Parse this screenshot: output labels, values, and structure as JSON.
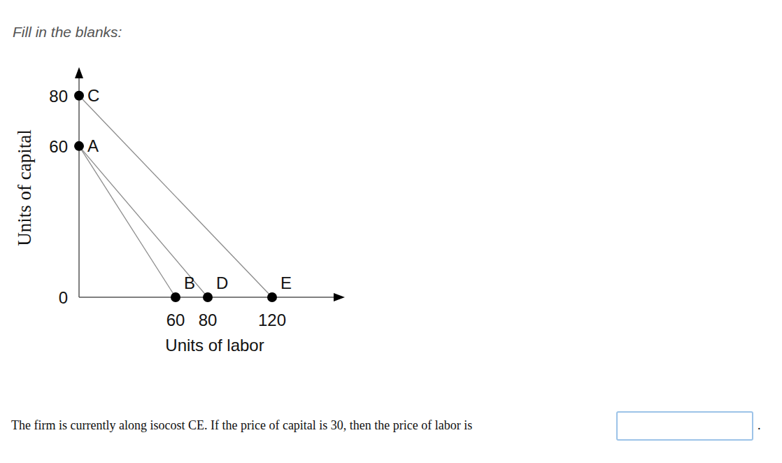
{
  "page": {
    "instruction": "Fill in the blanks:",
    "question": "The firm is currently along isocost CE. If the price of capital is 30, then the price of labor is",
    "answer_suffix": "."
  },
  "chart_data": {
    "type": "line",
    "x_label": "Units of labor",
    "y_label": "Units of capital",
    "xlim": [
      0,
      160
    ],
    "ylim": [
      0,
      88
    ],
    "xticks": [
      60,
      80,
      120
    ],
    "yticks": [
      0,
      60,
      80
    ],
    "grid": false,
    "series": [
      {
        "type": "line",
        "color": "#8c8c8c",
        "x": [
          0,
          60
        ],
        "values": [
          60,
          0
        ]
      },
      {
        "type": "line",
        "color": "#8c8c8c",
        "x": [
          0,
          80
        ],
        "values": [
          60,
          0
        ]
      },
      {
        "type": "line",
        "color": "#8c8c8c",
        "x": [
          0,
          120
        ],
        "values": [
          80,
          0
        ]
      },
      {
        "type": "scatter",
        "color": "#000000",
        "marker": "circle",
        "x": [
          0,
          0,
          60,
          80,
          120
        ],
        "values": [
          80,
          60,
          0,
          0,
          0
        ],
        "labels": [
          "C",
          "A",
          "B",
          "D",
          "E"
        ]
      }
    ]
  }
}
